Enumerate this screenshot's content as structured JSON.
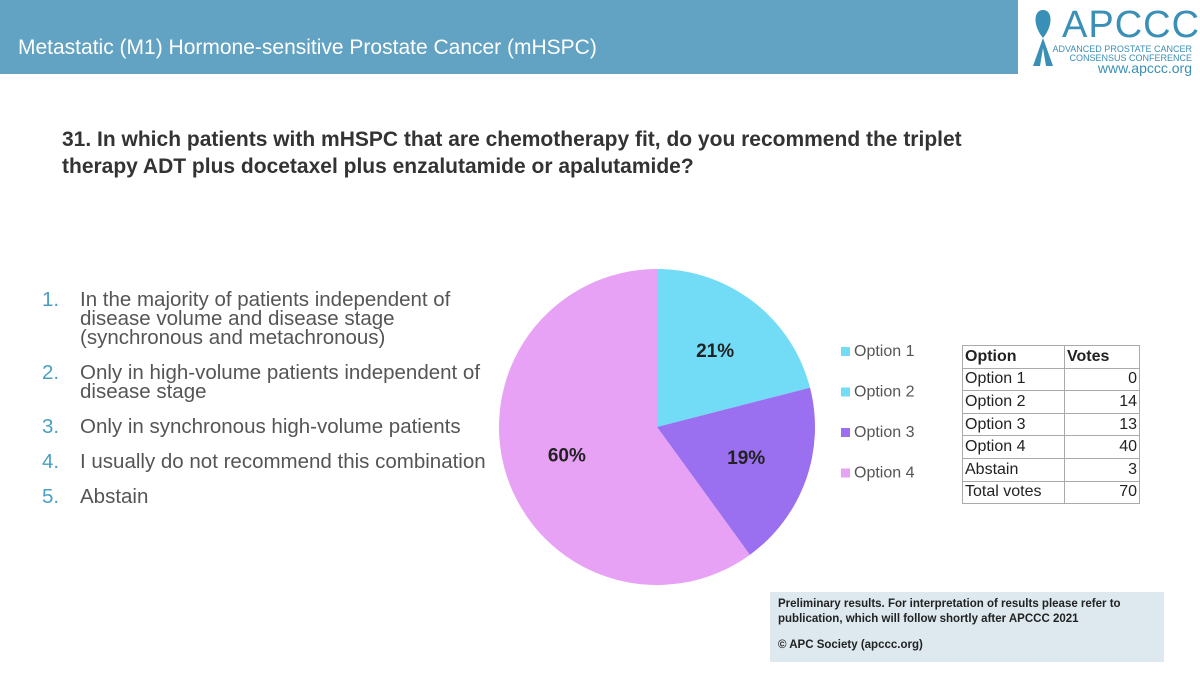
{
  "header": {
    "title": "Metastatic (M1) Hormone-sensitive Prostate Cancer (mHSPC)",
    "logo": {
      "name": "APCCC",
      "line1": "ADVANCED PROSTATE CANCER",
      "line2": "CONSENSUS CONFERENCE",
      "url": "www.apccc.org"
    }
  },
  "question": "31. In which patients with mHSPC that are chemotherapy fit, do you recommend the triplet therapy ADT plus docetaxel plus enzalutamide or apalutamide?",
  "options": [
    {
      "number": "1.",
      "text": "In the majority of patients independent of disease volume and disease stage (synchronous and metachronous)"
    },
    {
      "number": "2.",
      "text": "Only in high-volume patients independent of disease stage"
    },
    {
      "number": "3.",
      "text": "Only in synchronous high-volume patients"
    },
    {
      "number": "4.",
      "text": "I usually do not recommend this combination"
    },
    {
      "number": "5.",
      "text": "Abstain"
    }
  ],
  "chart_data": {
    "type": "pie",
    "categories": [
      "Option 1",
      "Option 2",
      "Option 3",
      "Option 4"
    ],
    "values": [
      0,
      21,
      19,
      60
    ],
    "value_labels": [
      null,
      "21%",
      "19%",
      "60%"
    ],
    "colors": [
      "#72dbf6",
      "#72dbf6",
      "#9a6ff0",
      "#e7a2f6"
    ],
    "legend": "right"
  },
  "table": {
    "header": [
      "Option",
      "Votes"
    ],
    "rows": [
      [
        "Option 1",
        "0"
      ],
      [
        "Option 2",
        "14"
      ],
      [
        "Option 3",
        "13"
      ],
      [
        "Option 4",
        "40"
      ],
      [
        "Abstain",
        "3"
      ],
      [
        "Total votes",
        "70"
      ]
    ]
  },
  "footnote": {
    "line1": "Preliminary results. For interpretation of results please refer to publication, which will follow shortly after APCCC 2021",
    "line2": "© APC Society (apccc.org)"
  }
}
